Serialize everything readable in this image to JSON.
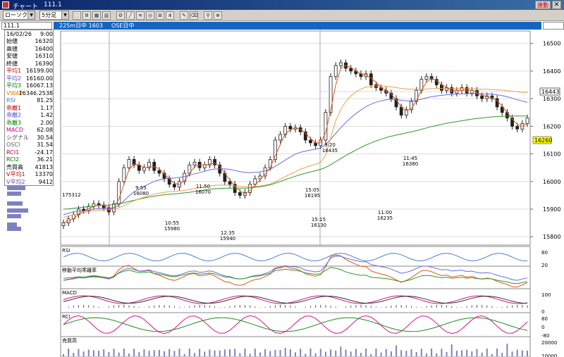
{
  "window": {
    "title": "チャート",
    "code_title": "111.1",
    "link_button": "連動",
    "close_glyph": "✕"
  },
  "toolbar": {
    "type_select": "ローソク",
    "interval_select": "5分足",
    "icons": [
      "pointer-icon",
      "line-chart-icon",
      "bar-chart-icon",
      "candle-chart-icon",
      "settings-icon",
      "trendline-icon",
      "fibonacci-icon",
      "cycle-icon",
      "ruler-icon",
      "fork-icon",
      "pencil-icon",
      "eraser-icon",
      "search-icon",
      "zoom-icon"
    ]
  },
  "infobar": {
    "code": "111.1",
    "instrument": "225m日中 1603",
    "exchange": "OSE日中"
  },
  "info_panel": {
    "date": "16/02/26",
    "time": "9:00",
    "rows": [
      {
        "label": "始値",
        "value": "16320",
        "color": "#000000"
      },
      {
        "label": "高値",
        "value": "16400",
        "color": "#000000"
      },
      {
        "label": "安値",
        "value": "16310",
        "color": "#000000"
      },
      {
        "label": "終値",
        "value": "16390",
        "color": "#000000"
      },
      {
        "label": "平均1",
        "value": "16199.00",
        "color": "#c00000"
      },
      {
        "label": "平均2",
        "value": "16160.00",
        "color": "#5050d0"
      },
      {
        "label": "平均3",
        "value": "16067.13",
        "color": "#008000"
      },
      {
        "label": "VWAP",
        "value": "16346.2538",
        "color": "#e08000"
      },
      {
        "label": "RSI",
        "value": "81.25",
        "color": "#3c7ad8"
      },
      {
        "label": "乖離1",
        "value": "1.17",
        "color": "#c00000"
      },
      {
        "label": "乖離2",
        "value": "1.42",
        "color": "#5050d0"
      },
      {
        "label": "乖離3",
        "value": "2.00",
        "color": "#008000"
      },
      {
        "label": "MACD",
        "value": "62.08",
        "color": "#d0007a"
      },
      {
        "label": "シグナル",
        "value": "30.54",
        "color": "#404040"
      },
      {
        "label": "OSCI",
        "value": "31.54",
        "color": "#606060"
      },
      {
        "label": "RCI1",
        "value": "-24.17",
        "color": "#c00040"
      },
      {
        "label": "RCI2",
        "value": "36.21",
        "color": "#008000"
      },
      {
        "label": "売買高",
        "value": "41813",
        "color": "#000000"
      },
      {
        "label": "V平均1",
        "value": "13370",
        "color": "#c00000"
      },
      {
        "label": "V平均2",
        "value": "9412",
        "color": "#5050d0"
      }
    ]
  },
  "colors": {
    "ma1": "#e05a1a",
    "ma2": "#6b6bd6",
    "ma3": "#2e9a2e",
    "vwap": "#e8a050",
    "candle": "#222222",
    "rsi": "#4a80d0",
    "macd": "#d0108a",
    "signal": "#333333",
    "rci1": "#e0108a",
    "rci2": "#208a20",
    "volume": "#8080c0",
    "price_tag": "#ffffff",
    "current_tag": "#ffff00"
  },
  "chart_data": {
    "type": "line",
    "series": [
      {
        "values": [
          15850,
          15865,
          15880,
          15900,
          15895,
          15910,
          15920,
          15915,
          15905,
          15890,
          15920,
          16000,
          16050,
          16080,
          16060,
          16040,
          16050,
          16070,
          16040,
          16030,
          16010,
          15990,
          15980,
          16000,
          16030,
          16060,
          16070,
          16050,
          16060,
          16080,
          16060,
          16030,
          16000,
          15990,
          15960,
          15950,
          15960,
          15990,
          16010,
          16020,
          16050,
          16080,
          16150,
          16170,
          16200,
          16190,
          16195,
          16180,
          16150,
          16140,
          16130,
          16150,
          16250,
          16380,
          16420,
          16430,
          16410,
          16400,
          16390,
          16380,
          16390,
          16350,
          16340,
          16330,
          16320,
          16300,
          16270,
          16240,
          16260,
          16290,
          16330,
          16370,
          16380,
          16370,
          16350,
          16330,
          16340,
          16320,
          16330,
          16340,
          16320,
          16330,
          16310,
          16300,
          16310,
          16300,
          16270,
          16250,
          16230,
          16200,
          16190,
          16210,
          16230
        ]
      },
      {
        "values": [
          15880,
          15885,
          15890,
          15893,
          15893,
          15896,
          15900,
          15902,
          15902,
          15901,
          15903,
          15915,
          15930,
          15948,
          15962,
          15972,
          15982,
          15992,
          16000,
          16006,
          16010,
          16012,
          16013,
          16015,
          16018,
          16023,
          16028,
          16032,
          16037,
          16042,
          16045,
          16046,
          16046,
          16044,
          16040,
          16036,
          16033,
          16032,
          16033,
          16035,
          16039,
          16044,
          16055,
          16066,
          16078,
          16089,
          16099,
          16106,
          16110,
          16114,
          16117,
          16121,
          16134,
          16153,
          16174,
          16195,
          16214,
          16231,
          16246,
          16259,
          16271,
          16280,
          16287,
          16292,
          16296,
          16298,
          16297,
          16294,
          16292,
          16292,
          16294,
          16298,
          16303,
          16307,
          16310,
          16312,
          16314,
          16315,
          16316,
          16317,
          16318,
          16318,
          16318,
          16317,
          16317,
          16316,
          16314,
          16311,
          16307,
          16302,
          16296,
          16291,
          16287
        ]
      },
      {
        "values": [
          15900,
          15901,
          15903,
          15905,
          15907,
          15909,
          15911,
          15913,
          15914,
          15915,
          15916,
          15919,
          15923,
          15928,
          15932,
          15936,
          15940,
          15944,
          15947,
          15950,
          15952,
          15954,
          15955,
          15957,
          15959,
          15961,
          15964,
          15966,
          15969,
          15972,
          15974,
          15975,
          15976,
          15976,
          15976,
          15976,
          15976,
          15977,
          15979,
          15981,
          15984,
          15988,
          15994,
          16000,
          16007,
          16013,
          16019,
          16025,
          16030,
          16035,
          16039,
          16044,
          16051,
          16061,
          16072,
          16083,
          16094,
          16104,
          16114,
          16123,
          16132,
          16140,
          16147,
          16153,
          16159,
          16164,
          16168,
          16172,
          16176,
          16180,
          16184,
          16189,
          16194,
          16199,
          16203,
          16207,
          16211,
          16214,
          16217,
          16220,
          16223,
          16226,
          16228,
          16230,
          16232,
          16234,
          16235,
          16236,
          16237,
          16237,
          16237,
          16237,
          16237
        ]
      },
      {
        "values": [
          15870,
          15875,
          15880,
          15885,
          15888,
          15891,
          15894,
          15896,
          15897,
          15897,
          15899,
          15905,
          15913,
          15922,
          15930,
          15937,
          15943,
          15949,
          15954,
          15958,
          15961,
          15963,
          15964,
          15966,
          15968,
          15971,
          15975,
          15978,
          15981,
          15984,
          15986,
          15987,
          15987,
          15986,
          15984,
          15982,
          15981,
          15981,
          15982,
          15984,
          15987,
          15991,
          15999,
          16008,
          16018,
          16027,
          16036,
          16044,
          16051,
          16057,
          16063,
          16070,
          16095,
          16160,
          16220,
          16260,
          16290,
          16310,
          16325,
          16335,
          16342,
          16345,
          16346,
          16346,
          16345,
          16343,
          16340,
          16337,
          16335,
          16334,
          16334,
          16334,
          16335,
          16336,
          16337,
          16337,
          16337,
          16337,
          16337,
          16337,
          16336,
          16336,
          16335,
          16334,
          16334,
          16333,
          16332,
          16331,
          16329,
          16327,
          16325,
          16323,
          16322
        ]
      }
    ],
    "y_ticks": [
      "16500",
      "16400",
      "16300",
      "16200",
      "16100",
      "16000",
      "15900",
      "15800"
    ],
    "ylim": [
      15770,
      16545
    ],
    "annotations": [
      {
        "time": "9:55",
        "price": "16080"
      },
      {
        "time": "11:50",
        "price": "16070"
      },
      {
        "time": "10:55",
        "price": "15980"
      },
      {
        "time": "12:35",
        "price": "15940"
      },
      {
        "time": "9:20",
        "price": "16435"
      },
      {
        "time": "15:05",
        "price": "16195"
      },
      {
        "time": "15:15",
        "price": "16130"
      },
      {
        "time": "11:45",
        "price": "16380"
      },
      {
        "time": "11:00",
        "price": "16235"
      }
    ],
    "price_tag": "16443",
    "current_tag": "16260",
    "left_label": "175312",
    "panels": [
      {
        "name": "RSI",
        "ticks": [
          "80",
          "20"
        ]
      },
      {
        "name": "移動平均乖離率",
        "ticks": []
      },
      {
        "name": "MACD",
        "ticks": [
          "100",
          "0"
        ]
      },
      {
        "name": "RCI",
        "ticks": [
          "80",
          "0",
          "-80"
        ]
      },
      {
        "name": "売買高",
        "ticks": [
          "20000",
          "10000"
        ]
      }
    ]
  }
}
